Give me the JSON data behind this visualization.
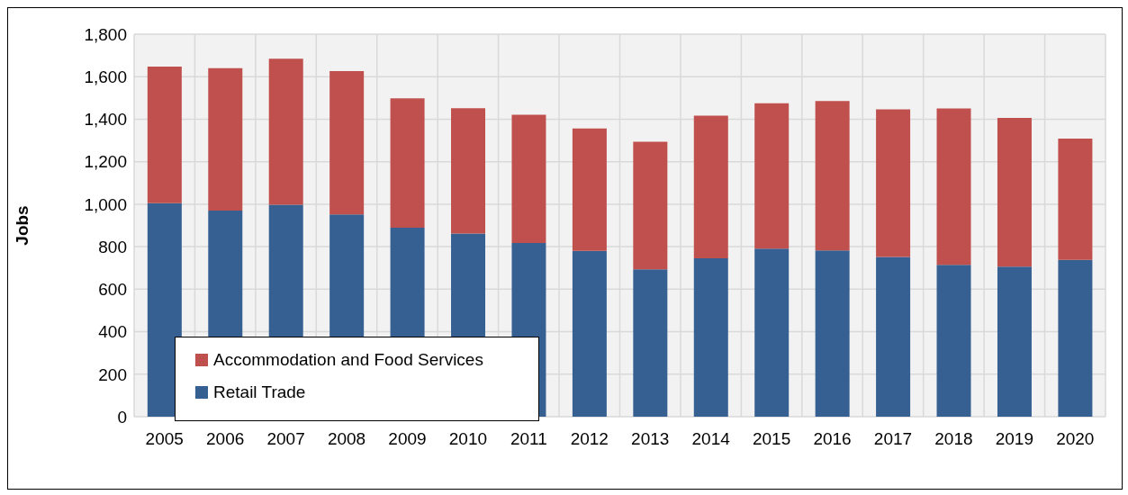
{
  "chart_data": {
    "type": "bar",
    "stacked": true,
    "ylabel": "Jobs",
    "categories": [
      "2005",
      "2006",
      "2007",
      "2008",
      "2009",
      "2010",
      "2011",
      "2012",
      "2013",
      "2014",
      "2015",
      "2016",
      "2017",
      "2018",
      "2019",
      "2020"
    ],
    "series": [
      {
        "name": "Retail Trade",
        "color": "#376092",
        "values": [
          1005,
          970,
          997,
          952,
          889,
          862,
          817,
          780,
          694,
          745,
          791,
          782,
          752,
          715,
          706,
          738
        ]
      },
      {
        "name": "Accommodation and Food Services",
        "color": "#c0504d",
        "values": [
          643,
          670,
          688,
          674,
          609,
          590,
          604,
          576,
          600,
          672,
          684,
          704,
          694,
          736,
          700,
          571
        ]
      }
    ],
    "ylim": [
      0,
      1800
    ],
    "yticks": [
      0,
      200,
      400,
      600,
      800,
      {
        "value": 1000,
        "label": "1,000"
      },
      {
        "value": 1200,
        "label": "1,200"
      },
      {
        "value": 1400,
        "label": "1,400"
      },
      {
        "value": 1600,
        "label": "1,600"
      },
      {
        "value": 1800,
        "label": "1,800"
      }
    ],
    "grid": true,
    "legend": "bottom left"
  }
}
